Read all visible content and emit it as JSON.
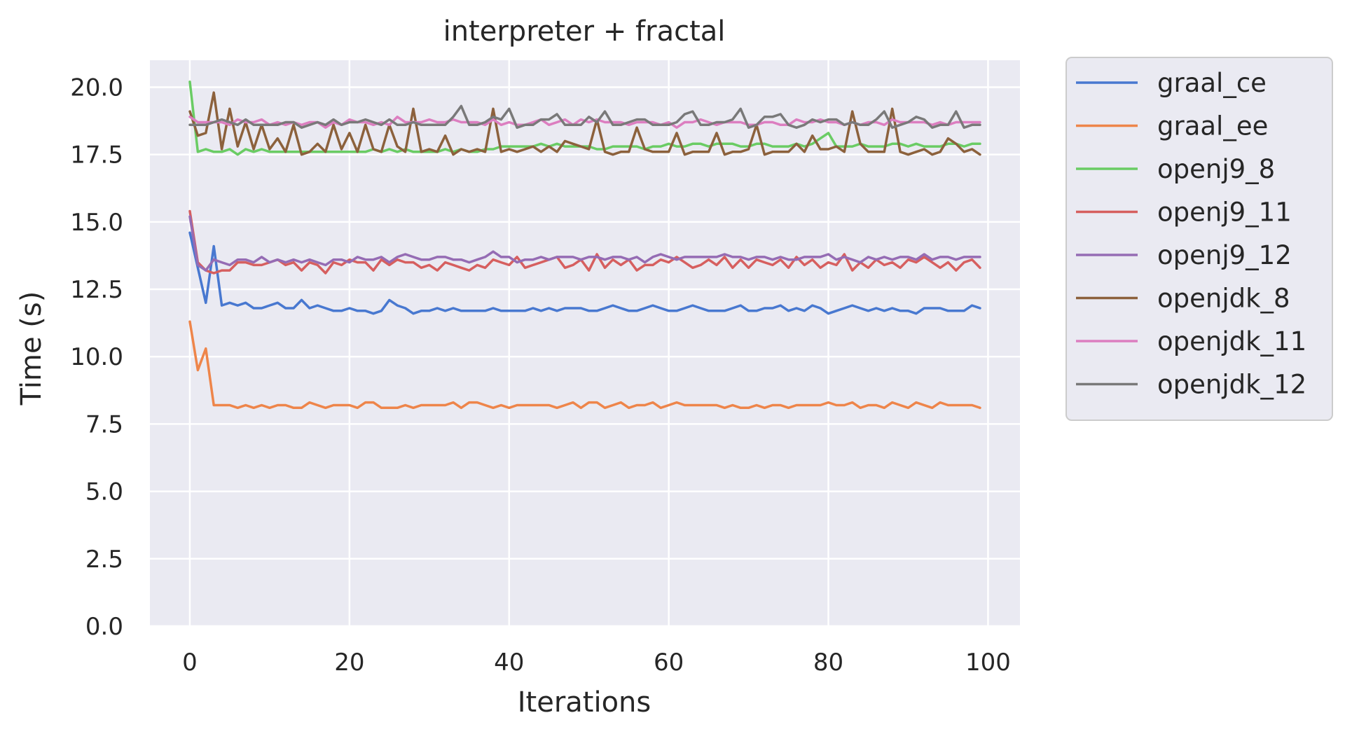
{
  "chart_data": {
    "type": "line",
    "title": "interpreter + fractal",
    "xlabel": "Iterations",
    "ylabel": "Time (s)",
    "xlim": [
      -5,
      104
    ],
    "ylim": [
      0,
      21
    ],
    "xticks": [
      0,
      20,
      40,
      60,
      80,
      100
    ],
    "xtick_labels": [
      "0",
      "20",
      "40",
      "60",
      "80",
      "100"
    ],
    "yticks": [
      0,
      2.5,
      5,
      7.5,
      10,
      12.5,
      15,
      17.5,
      20
    ],
    "ytick_labels": [
      "0.0",
      "2.5",
      "5.0",
      "7.5",
      "10.0",
      "12.5",
      "15.0",
      "17.5",
      "20.0"
    ],
    "grid": true,
    "legend_position": "outside-right-top",
    "background": "#eaeaf2",
    "x": [
      0,
      1,
      2,
      3,
      4,
      5,
      6,
      7,
      8,
      9,
      10,
      11,
      12,
      13,
      14,
      15,
      16,
      17,
      18,
      19,
      20,
      21,
      22,
      23,
      24,
      25,
      26,
      27,
      28,
      29,
      30,
      31,
      32,
      33,
      34,
      35,
      36,
      37,
      38,
      39,
      40,
      41,
      42,
      43,
      44,
      45,
      46,
      47,
      48,
      49,
      50,
      51,
      52,
      53,
      54,
      55,
      56,
      57,
      58,
      59,
      60,
      61,
      62,
      63,
      64,
      65,
      66,
      67,
      68,
      69,
      70,
      71,
      72,
      73,
      74,
      75,
      76,
      77,
      78,
      79,
      80,
      81,
      82,
      83,
      84,
      85,
      86,
      87,
      88,
      89,
      90,
      91,
      92,
      93,
      94,
      95,
      96,
      97,
      98,
      99
    ],
    "series": [
      {
        "name": "graal_ce",
        "color": "#4878d0",
        "values": [
          14.6,
          13.3,
          12.0,
          14.1,
          11.9,
          12.0,
          11.9,
          12.0,
          11.8,
          11.8,
          11.9,
          12.0,
          11.8,
          11.8,
          12.1,
          11.8,
          11.9,
          11.8,
          11.7,
          11.7,
          11.8,
          11.7,
          11.7,
          11.6,
          11.7,
          12.1,
          11.9,
          11.8,
          11.6,
          11.7,
          11.7,
          11.8,
          11.7,
          11.8,
          11.7,
          11.7,
          11.7,
          11.7,
          11.8,
          11.7,
          11.7,
          11.7,
          11.7,
          11.8,
          11.7,
          11.8,
          11.7,
          11.8,
          11.8,
          11.8,
          11.7,
          11.7,
          11.8,
          11.9,
          11.8,
          11.7,
          11.7,
          11.8,
          11.9,
          11.8,
          11.7,
          11.7,
          11.8,
          11.9,
          11.8,
          11.7,
          11.7,
          11.7,
          11.8,
          11.9,
          11.7,
          11.7,
          11.8,
          11.8,
          11.9,
          11.7,
          11.8,
          11.7,
          11.9,
          11.8,
          11.6,
          11.7,
          11.8,
          11.9,
          11.8,
          11.7,
          11.8,
          11.7,
          11.8,
          11.7,
          11.7,
          11.6,
          11.8,
          11.8,
          11.8,
          11.7,
          11.7,
          11.7,
          11.9,
          11.8
        ]
      },
      {
        "name": "graal_ee",
        "color": "#ee854a",
        "values": [
          11.3,
          9.5,
          10.3,
          8.2,
          8.2,
          8.2,
          8.1,
          8.2,
          8.1,
          8.2,
          8.1,
          8.2,
          8.2,
          8.1,
          8.1,
          8.3,
          8.2,
          8.1,
          8.2,
          8.2,
          8.2,
          8.1,
          8.3,
          8.3,
          8.1,
          8.1,
          8.1,
          8.2,
          8.1,
          8.2,
          8.2,
          8.2,
          8.2,
          8.3,
          8.1,
          8.3,
          8.3,
          8.2,
          8.1,
          8.2,
          8.1,
          8.2,
          8.2,
          8.2,
          8.2,
          8.2,
          8.1,
          8.2,
          8.3,
          8.1,
          8.3,
          8.3,
          8.1,
          8.2,
          8.3,
          8.1,
          8.2,
          8.2,
          8.3,
          8.1,
          8.2,
          8.3,
          8.2,
          8.2,
          8.2,
          8.2,
          8.2,
          8.1,
          8.2,
          8.1,
          8.1,
          8.2,
          8.1,
          8.2,
          8.2,
          8.1,
          8.2,
          8.2,
          8.2,
          8.2,
          8.3,
          8.2,
          8.2,
          8.3,
          8.1,
          8.2,
          8.2,
          8.1,
          8.3,
          8.2,
          8.1,
          8.3,
          8.2,
          8.1,
          8.3,
          8.2,
          8.2,
          8.2,
          8.2,
          8.1
        ]
      },
      {
        "name": "openj9_8",
        "color": "#6acc64",
        "values": [
          20.2,
          17.6,
          17.7,
          17.6,
          17.6,
          17.7,
          17.5,
          17.7,
          17.6,
          17.7,
          17.6,
          17.6,
          17.6,
          17.6,
          17.6,
          17.6,
          17.6,
          17.6,
          17.6,
          17.6,
          17.6,
          17.6,
          17.6,
          17.7,
          17.6,
          17.7,
          17.6,
          17.7,
          17.6,
          17.6,
          17.6,
          17.6,
          17.7,
          17.6,
          17.7,
          17.6,
          17.6,
          17.7,
          17.7,
          17.8,
          17.8,
          17.8,
          17.8,
          17.8,
          17.9,
          17.8,
          17.9,
          17.8,
          17.8,
          17.8,
          17.8,
          17.7,
          17.7,
          17.8,
          17.8,
          17.8,
          17.8,
          17.7,
          17.8,
          17.8,
          17.9,
          17.8,
          17.8,
          17.9,
          17.9,
          17.8,
          17.9,
          17.9,
          17.9,
          17.8,
          17.8,
          17.9,
          17.9,
          17.8,
          17.8,
          17.8,
          17.9,
          17.8,
          17.9,
          18.1,
          18.3,
          17.8,
          17.8,
          17.8,
          17.9,
          17.8,
          17.8,
          17.8,
          17.9,
          17.9,
          17.8,
          17.9,
          17.8,
          17.8,
          17.8,
          17.9,
          17.9,
          17.8,
          17.9,
          17.9
        ]
      },
      {
        "name": "openj9_11",
        "color": "#d65f5f",
        "values": [
          15.4,
          13.5,
          13.2,
          13.1,
          13.2,
          13.2,
          13.5,
          13.5,
          13.4,
          13.4,
          13.5,
          13.6,
          13.4,
          13.5,
          13.2,
          13.5,
          13.4,
          13.1,
          13.5,
          13.4,
          13.6,
          13.5,
          13.5,
          13.2,
          13.6,
          13.4,
          13.6,
          13.5,
          13.5,
          13.3,
          13.4,
          13.2,
          13.5,
          13.4,
          13.3,
          13.2,
          13.4,
          13.3,
          13.6,
          13.5,
          13.4,
          13.7,
          13.3,
          13.4,
          13.5,
          13.6,
          13.7,
          13.3,
          13.4,
          13.6,
          13.2,
          13.8,
          13.3,
          13.6,
          13.4,
          13.6,
          13.2,
          13.4,
          13.4,
          13.6,
          13.5,
          13.7,
          13.5,
          13.3,
          13.4,
          13.6,
          13.4,
          13.7,
          13.3,
          13.6,
          13.3,
          13.6,
          13.5,
          13.4,
          13.6,
          13.3,
          13.7,
          13.4,
          13.6,
          13.3,
          13.5,
          13.4,
          13.8,
          13.2,
          13.5,
          13.3,
          13.6,
          13.4,
          13.5,
          13.3,
          13.6,
          13.5,
          13.7,
          13.5,
          13.3,
          13.5,
          13.2,
          13.5,
          13.6,
          13.3
        ]
      },
      {
        "name": "openj9_12",
        "color": "#956cb4",
        "values": [
          15.2,
          13.4,
          13.2,
          13.6,
          13.5,
          13.4,
          13.6,
          13.6,
          13.5,
          13.7,
          13.5,
          13.6,
          13.5,
          13.6,
          13.5,
          13.6,
          13.5,
          13.4,
          13.6,
          13.6,
          13.5,
          13.7,
          13.6,
          13.6,
          13.7,
          13.5,
          13.7,
          13.8,
          13.7,
          13.6,
          13.6,
          13.7,
          13.7,
          13.6,
          13.6,
          13.5,
          13.6,
          13.7,
          13.9,
          13.7,
          13.7,
          13.5,
          13.6,
          13.6,
          13.7,
          13.6,
          13.7,
          13.7,
          13.7,
          13.6,
          13.7,
          13.7,
          13.6,
          13.7,
          13.7,
          13.6,
          13.7,
          13.5,
          13.7,
          13.8,
          13.7,
          13.6,
          13.7,
          13.7,
          13.7,
          13.7,
          13.7,
          13.8,
          13.7,
          13.7,
          13.6,
          13.7,
          13.7,
          13.6,
          13.7,
          13.6,
          13.6,
          13.7,
          13.7,
          13.7,
          13.8,
          13.6,
          13.7,
          13.6,
          13.5,
          13.7,
          13.6,
          13.7,
          13.6,
          13.7,
          13.7,
          13.6,
          13.8,
          13.6,
          13.7,
          13.7,
          13.6,
          13.7,
          13.7,
          13.7
        ]
      },
      {
        "name": "openjdk_8",
        "color": "#8c613c",
        "values": [
          19.1,
          18.2,
          18.3,
          19.8,
          17.7,
          19.2,
          17.8,
          18.7,
          17.7,
          18.6,
          17.7,
          18.1,
          17.6,
          18.6,
          17.5,
          17.6,
          17.9,
          17.6,
          18.6,
          17.7,
          18.3,
          17.6,
          18.6,
          17.7,
          17.6,
          18.6,
          17.8,
          17.6,
          19.2,
          17.6,
          17.7,
          17.6,
          18.2,
          17.5,
          17.7,
          17.6,
          17.7,
          17.6,
          19.2,
          17.6,
          17.7,
          17.6,
          17.7,
          17.8,
          17.6,
          17.8,
          17.6,
          18.0,
          17.9,
          17.8,
          17.7,
          18.8,
          17.6,
          17.5,
          17.6,
          17.6,
          18.5,
          17.7,
          17.6,
          17.6,
          17.6,
          18.3,
          17.5,
          17.6,
          17.6,
          17.6,
          18.3,
          17.5,
          17.6,
          17.6,
          17.7,
          18.6,
          17.5,
          17.6,
          17.6,
          17.6,
          17.9,
          17.6,
          18.2,
          17.7,
          17.7,
          17.8,
          17.6,
          19.1,
          17.9,
          17.6,
          17.6,
          17.6,
          19.2,
          17.6,
          17.5,
          17.6,
          17.7,
          17.5,
          17.6,
          18.1,
          17.9,
          17.6,
          17.7,
          17.5
        ]
      },
      {
        "name": "openjdk_11",
        "color": "#dc7ec0",
        "values": [
          18.9,
          18.7,
          18.7,
          18.7,
          18.7,
          18.6,
          18.8,
          18.7,
          18.7,
          18.8,
          18.6,
          18.7,
          18.6,
          18.7,
          18.6,
          18.7,
          18.7,
          18.5,
          18.7,
          18.6,
          18.8,
          18.7,
          18.7,
          18.6,
          18.7,
          18.6,
          18.9,
          18.7,
          18.7,
          18.7,
          18.8,
          18.7,
          18.7,
          18.8,
          18.7,
          18.7,
          18.7,
          18.6,
          18.8,
          18.6,
          18.7,
          18.6,
          18.6,
          18.7,
          18.8,
          18.6,
          18.7,
          18.8,
          18.6,
          18.8,
          18.7,
          18.8,
          18.7,
          18.7,
          18.7,
          18.6,
          18.7,
          18.7,
          18.7,
          18.6,
          18.7,
          18.5,
          18.7,
          18.7,
          18.8,
          18.7,
          18.6,
          18.7,
          18.7,
          18.7,
          18.6,
          18.6,
          18.7,
          18.7,
          18.6,
          18.6,
          18.8,
          18.7,
          18.7,
          18.8,
          18.7,
          18.7,
          18.6,
          18.7,
          18.6,
          18.7,
          18.7,
          18.6,
          18.8,
          18.7,
          18.7,
          18.7,
          18.7,
          18.6,
          18.7,
          18.6,
          18.7,
          18.7,
          18.7,
          18.7
        ]
      },
      {
        "name": "openjdk_12",
        "color": "#797979",
        "values": [
          18.6,
          18.6,
          18.6,
          18.7,
          18.8,
          18.7,
          18.6,
          18.8,
          18.6,
          18.6,
          18.6,
          18.6,
          18.7,
          18.7,
          18.5,
          18.6,
          18.7,
          18.6,
          18.8,
          18.6,
          18.7,
          18.7,
          18.8,
          18.7,
          18.6,
          18.8,
          18.6,
          18.6,
          18.7,
          18.6,
          18.6,
          18.6,
          18.6,
          18.9,
          19.3,
          18.6,
          18.6,
          18.7,
          18.9,
          18.8,
          19.2,
          18.5,
          18.6,
          18.6,
          18.8,
          18.8,
          19.0,
          18.6,
          18.6,
          18.6,
          18.9,
          18.7,
          19.1,
          18.6,
          18.6,
          18.7,
          18.8,
          18.8,
          18.6,
          18.6,
          18.6,
          18.7,
          19.0,
          19.1,
          18.6,
          18.6,
          18.7,
          18.7,
          18.8,
          19.2,
          18.5,
          18.6,
          18.9,
          18.9,
          19.0,
          18.6,
          18.5,
          18.6,
          18.8,
          18.7,
          18.8,
          18.8,
          18.6,
          18.7,
          18.6,
          18.6,
          18.8,
          19.1,
          18.5,
          18.6,
          18.7,
          18.9,
          18.8,
          18.5,
          18.6,
          18.6,
          19.1,
          18.5,
          18.6,
          18.6
        ]
      }
    ]
  }
}
